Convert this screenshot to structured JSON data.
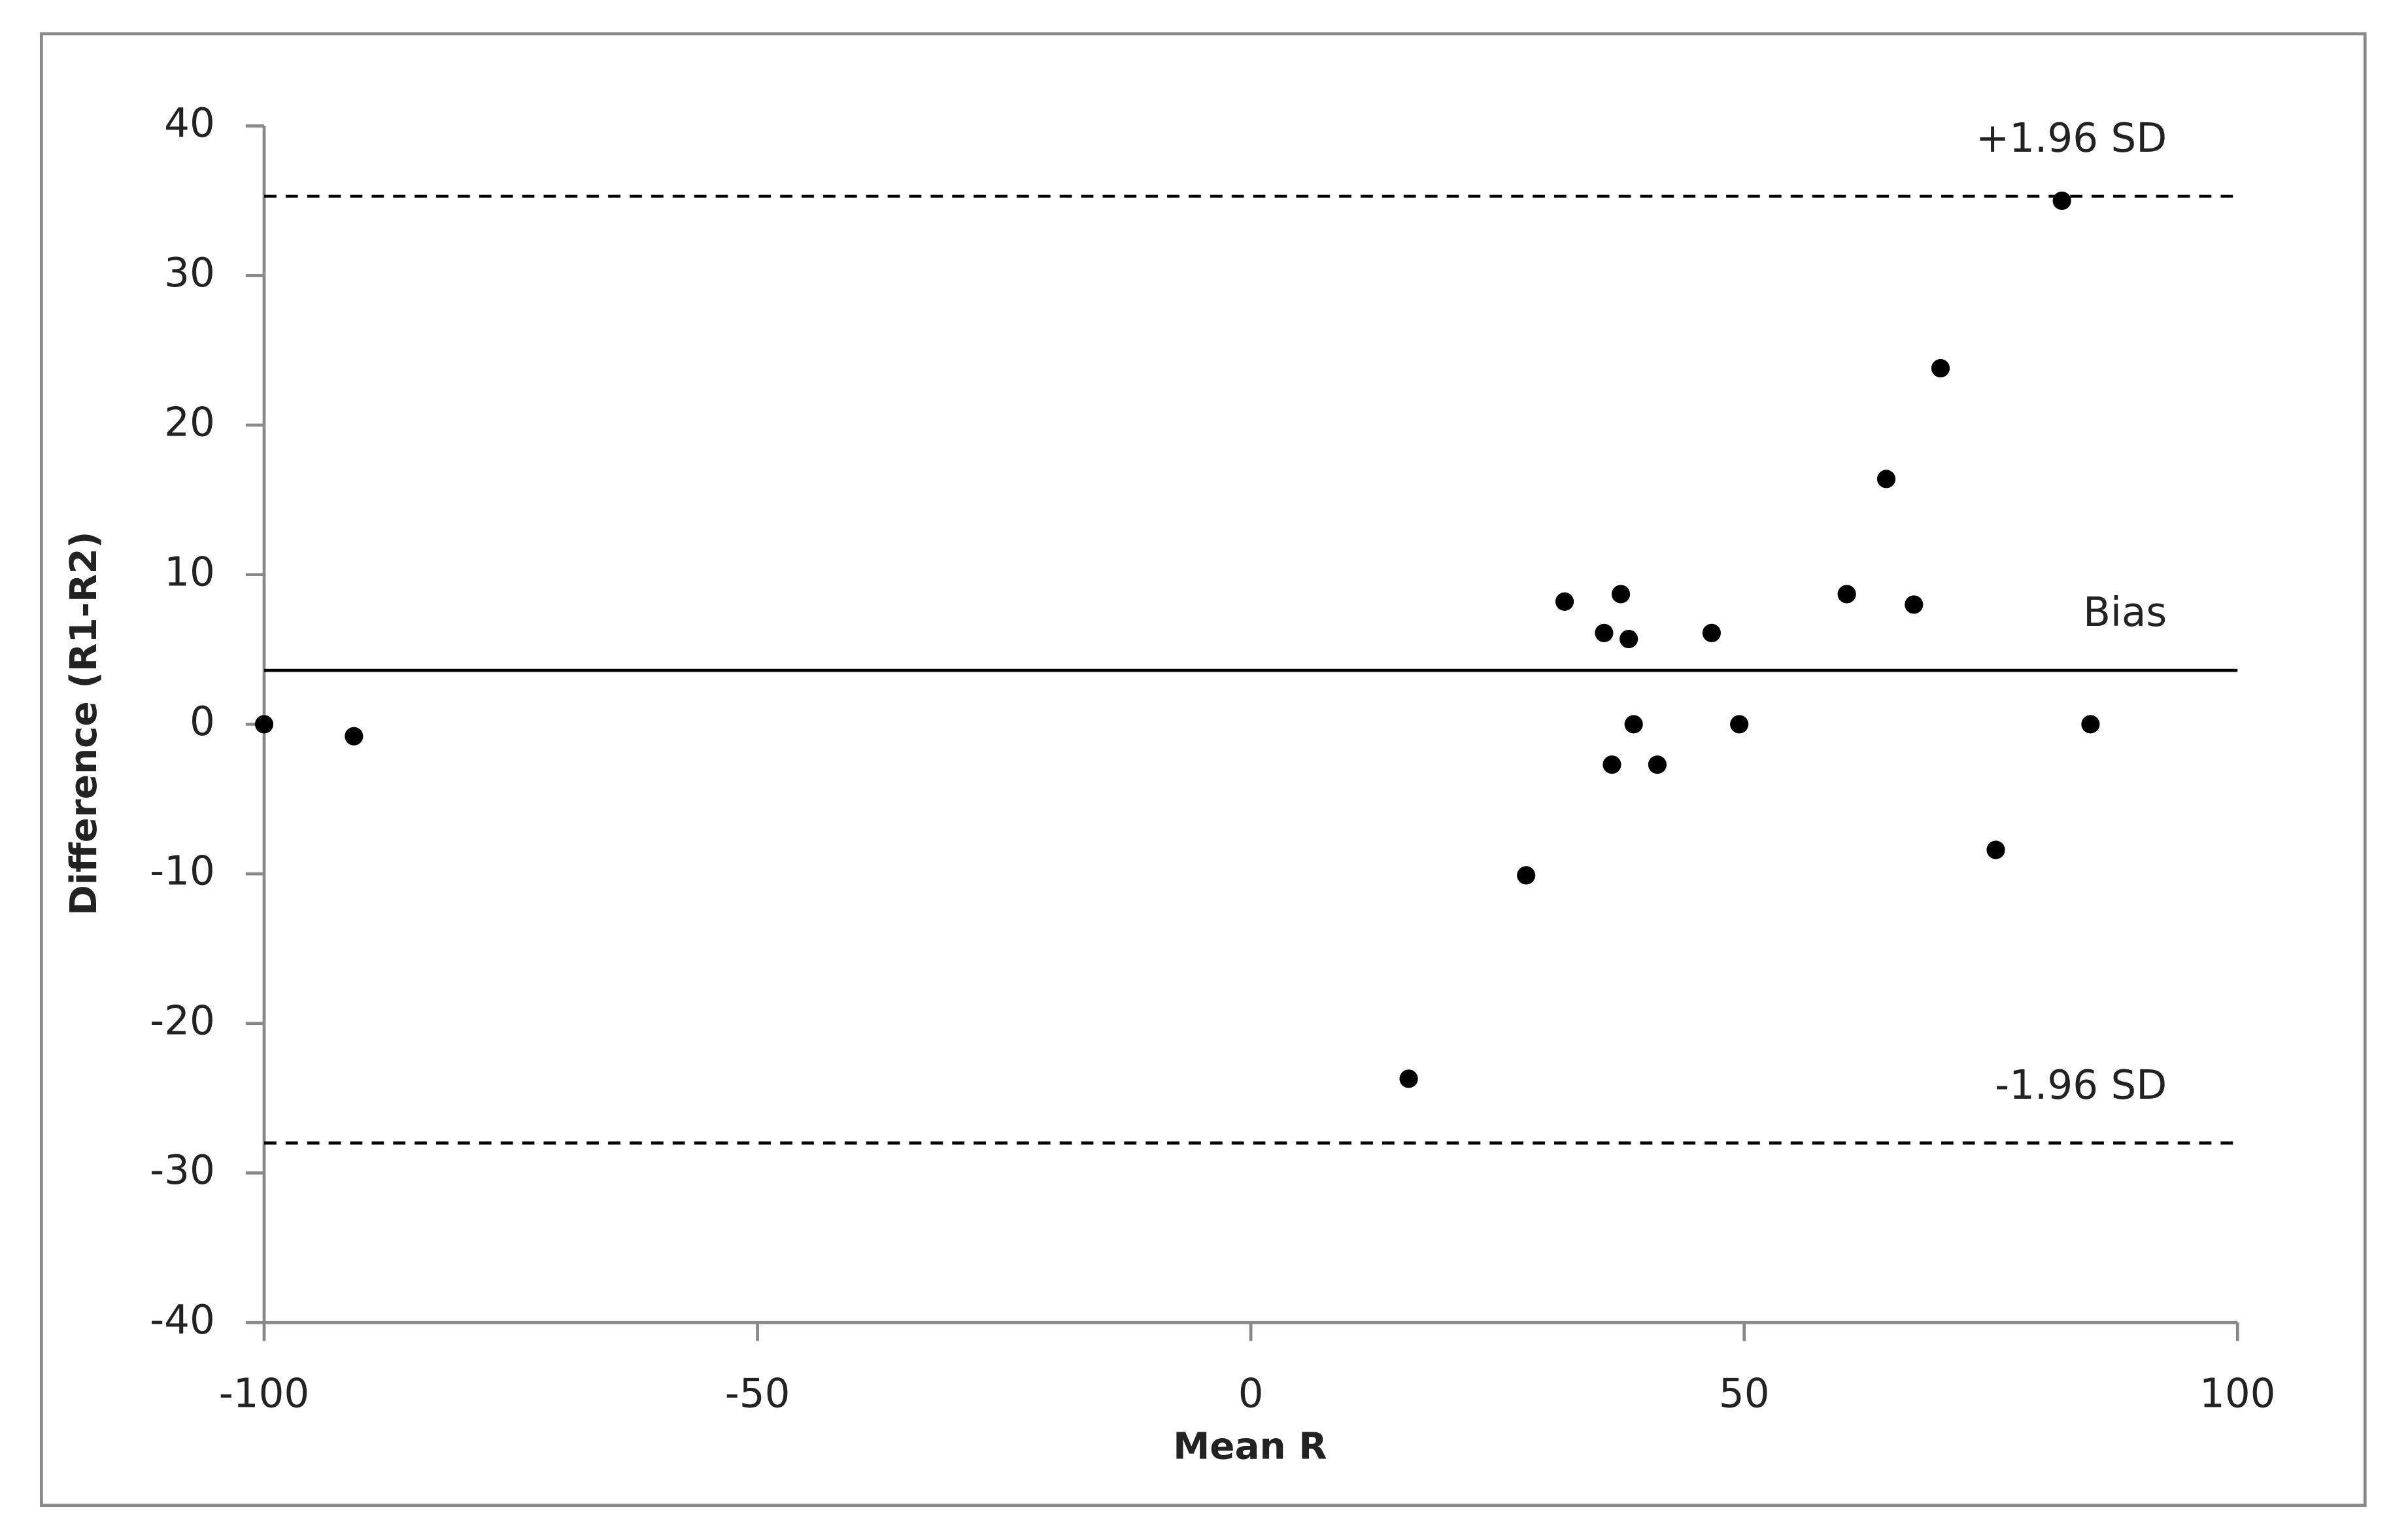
{
  "chart_data": {
    "type": "scatter",
    "x_label": "Mean R",
    "y_label": "Difference (R1-R2)",
    "x": [
      -100,
      -90.9,
      16.0,
      27.9,
      31.8,
      35.8,
      36.6,
      37.5,
      38.3,
      38.8,
      41.2,
      46.7,
      49.5,
      60.4,
      64.4,
      67.2,
      69.9,
      75.5,
      82.2,
      85.1
    ],
    "values": [
      0,
      -0.8,
      -23.7,
      -10.1,
      8.2,
      6.1,
      -2.7,
      8.7,
      5.7,
      0,
      -2.7,
      6.1,
      0,
      8.7,
      16.4,
      8.0,
      23.8,
      -8.4,
      35.0,
      0
    ],
    "color": "#000000",
    "xlim": [
      -100,
      100
    ],
    "xticks": [
      -100,
      -50,
      0,
      50,
      100
    ],
    "ylim": [
      -40,
      40
    ],
    "yticks": [
      -40,
      -30,
      -20,
      -10,
      0,
      10,
      20,
      30,
      40
    ],
    "reference_lines": [
      {
        "label": "+1.96 SD",
        "value": 35.3,
        "style": "dashed"
      },
      {
        "label": "Bias",
        "value": 3.6,
        "style": "solid"
      },
      {
        "label": "-1.96 SD",
        "value": -28.0,
        "style": "dashed"
      }
    ]
  }
}
